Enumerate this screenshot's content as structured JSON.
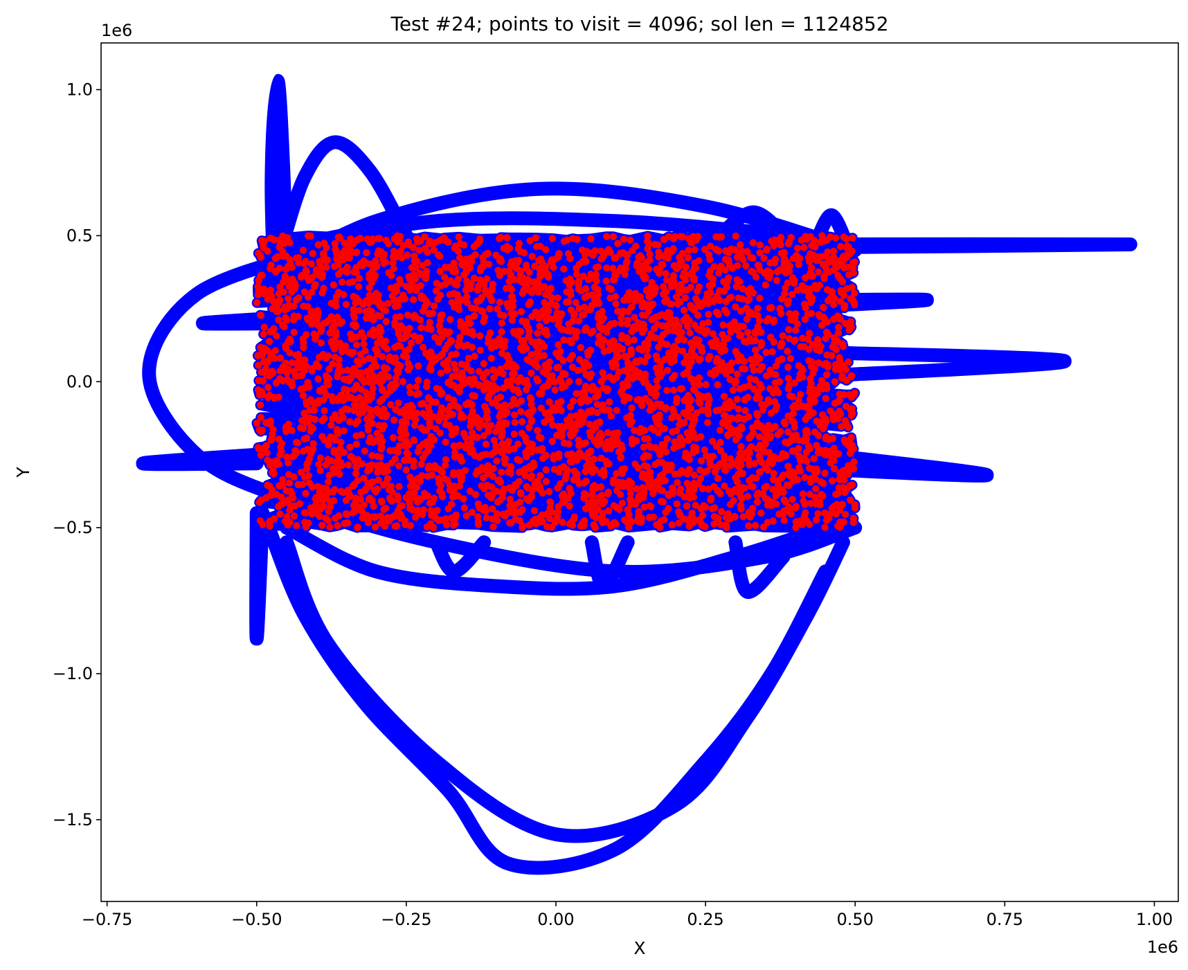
{
  "chart_data": {
    "type": "line",
    "title": "Test #24; points to visit = 4096; sol len = 1124852",
    "xlabel": "X",
    "ylabel": "Y",
    "x_offset_label": "1e6",
    "y_offset_label": "1e6",
    "xlim": [
      -0.76,
      1.04
    ],
    "ylim": [
      -1.78,
      1.16
    ],
    "x_ticks": [
      -0.75,
      -0.5,
      -0.25,
      0.0,
      0.25,
      0.5,
      0.75,
      1.0
    ],
    "x_tick_labels": [
      "−0.75",
      "−0.50",
      "−0.25",
      "0.00",
      "0.25",
      "0.50",
      "0.75",
      "1.00"
    ],
    "y_ticks": [
      1.0,
      0.5,
      0.0,
      -0.5,
      -1.0,
      -1.5
    ],
    "y_tick_labels": [
      "1.0",
      "0.5",
      "0.0",
      "−0.5",
      "−1.0",
      "−1.5"
    ],
    "grid": false,
    "points_to_visit": 4096,
    "solution_length": 1124852,
    "point_region": {
      "x": [
        -0.5,
        0.5
      ],
      "y": [
        -0.5,
        0.5
      ]
    },
    "series": [
      {
        "kind": "tour-path",
        "color": "#0000ff",
        "loops": [
          [
            [
              -0.47,
              0.3
            ],
            [
              -0.475,
              0.7
            ],
            [
              -0.465,
              1.03
            ],
            [
              -0.455,
              0.7
            ],
            [
              -0.45,
              0.3
            ]
          ],
          [
            [
              -0.46,
              0.45
            ],
            [
              -0.42,
              0.7
            ],
            [
              -0.37,
              0.82
            ],
            [
              -0.31,
              0.72
            ],
            [
              -0.25,
              0.5
            ]
          ],
          [
            [
              -0.49,
              0.35
            ],
            [
              -0.3,
              0.55
            ],
            [
              -0.03,
              0.66
            ],
            [
              0.25,
              0.6
            ],
            [
              0.5,
              0.45
            ]
          ],
          [
            [
              -0.48,
              0.45
            ],
            [
              -0.2,
              0.55
            ],
            [
              0.1,
              0.55
            ],
            [
              0.4,
              0.5
            ]
          ],
          [
            [
              -0.4,
              0.45
            ],
            [
              -0.6,
              0.3
            ],
            [
              -0.68,
              0.03
            ],
            [
              -0.6,
              -0.25
            ],
            [
              -0.45,
              -0.4
            ],
            [
              -0.2,
              -0.55
            ],
            [
              0.1,
              -0.65
            ],
            [
              0.35,
              -0.6
            ],
            [
              0.5,
              -0.5
            ]
          ],
          [
            [
              -0.5,
              -0.28
            ],
            [
              -0.69,
              -0.28
            ],
            [
              -0.5,
              -0.25
            ]
          ],
          [
            [
              -0.45,
              0.2
            ],
            [
              -0.59,
              0.2
            ],
            [
              -0.45,
              0.22
            ]
          ],
          [
            [
              0.45,
              0.28
            ],
            [
              0.62,
              0.28
            ],
            [
              0.45,
              0.26
            ]
          ],
          [
            [
              0.45,
              0.1
            ],
            [
              0.85,
              0.07
            ],
            [
              0.45,
              0.02
            ]
          ],
          [
            [
              0.45,
              0.47
            ],
            [
              0.96,
              0.47
            ],
            [
              0.45,
              0.46
            ]
          ],
          [
            [
              0.45,
              -0.25
            ],
            [
              0.72,
              -0.32
            ],
            [
              0.45,
              -0.3
            ]
          ],
          [
            [
              -0.5,
              -0.45
            ],
            [
              -0.5,
              -0.88
            ],
            [
              -0.49,
              -0.45
            ]
          ],
          [
            [
              -0.48,
              -0.5
            ],
            [
              -0.42,
              -0.8
            ],
            [
              -0.32,
              -1.1
            ],
            [
              -0.18,
              -1.4
            ],
            [
              -0.08,
              -1.65
            ],
            [
              0.1,
              -1.6
            ],
            [
              0.25,
              -1.3
            ],
            [
              0.36,
              -1.0
            ],
            [
              0.45,
              -0.65
            ]
          ],
          [
            [
              -0.45,
              -0.55
            ],
            [
              -0.38,
              -0.9
            ],
            [
              -0.2,
              -1.3
            ],
            [
              0.0,
              -1.55
            ],
            [
              0.2,
              -1.45
            ],
            [
              0.32,
              -1.15
            ],
            [
              0.42,
              -0.8
            ],
            [
              0.48,
              -0.55
            ]
          ],
          [
            [
              -0.45,
              -0.5
            ],
            [
              -0.3,
              -0.65
            ],
            [
              -0.1,
              -0.7
            ],
            [
              0.1,
              -0.7
            ],
            [
              0.3,
              -0.6
            ],
            [
              0.45,
              -0.5
            ]
          ],
          [
            [
              0.3,
              -0.55
            ],
            [
              0.32,
              -0.72
            ],
            [
              0.38,
              -0.6
            ]
          ],
          [
            [
              0.06,
              -0.55
            ],
            [
              0.08,
              -0.7
            ],
            [
              0.12,
              -0.55
            ]
          ],
          [
            [
              -0.2,
              -0.55
            ],
            [
              -0.17,
              -0.65
            ],
            [
              -0.12,
              -0.55
            ]
          ],
          [
            [
              0.25,
              0.45
            ],
            [
              0.33,
              0.58
            ],
            [
              0.4,
              0.45
            ]
          ],
          [
            [
              0.43,
              0.45
            ],
            [
              0.46,
              0.57
            ],
            [
              0.49,
              0.45
            ]
          ]
        ]
      },
      {
        "kind": "points",
        "color": "#ff0000",
        "count": 4096,
        "x_range": [
          -0.5,
          0.5
        ],
        "y_range": [
          -0.5,
          0.5
        ],
        "seed": 24
      }
    ]
  }
}
